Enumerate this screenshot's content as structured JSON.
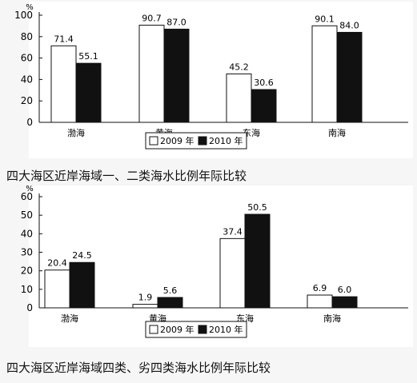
{
  "chart_data": [
    {
      "type": "bar",
      "title": "四大海区近岸海域一、二类海水比例年际比较",
      "unit": "%",
      "categories": [
        "渤海",
        "黄海",
        "东海",
        "南海"
      ],
      "series": [
        {
          "name": "2009 年",
          "values": [
            71.4,
            90.7,
            45.2,
            90.1
          ],
          "color": "#ffffff"
        },
        {
          "name": "2010 年",
          "values": [
            55.1,
            87.0,
            30.6,
            84.0
          ],
          "color": "#111111"
        }
      ],
      "ylim": [
        0,
        100
      ],
      "yticks": [
        0,
        20,
        40,
        60,
        80,
        100
      ],
      "grid": false,
      "legend_position": "bottom-right"
    },
    {
      "type": "bar",
      "title": "四大海区近岸海域四类、劣四类海水比例年际比较",
      "unit": "%",
      "categories": [
        "渤海",
        "黄海",
        "东海",
        "南海"
      ],
      "series": [
        {
          "name": "2009 年",
          "values": [
            20.4,
            1.9,
            37.4,
            6.9
          ],
          "color": "#ffffff"
        },
        {
          "name": "2010 年",
          "values": [
            24.5,
            5.6,
            50.5,
            6.0
          ],
          "color": "#111111"
        }
      ],
      "ylim": [
        0,
        60
      ],
      "yticks": [
        0,
        10,
        20,
        30,
        40,
        50,
        60
      ],
      "grid": false,
      "legend_position": "bottom-right"
    }
  ]
}
